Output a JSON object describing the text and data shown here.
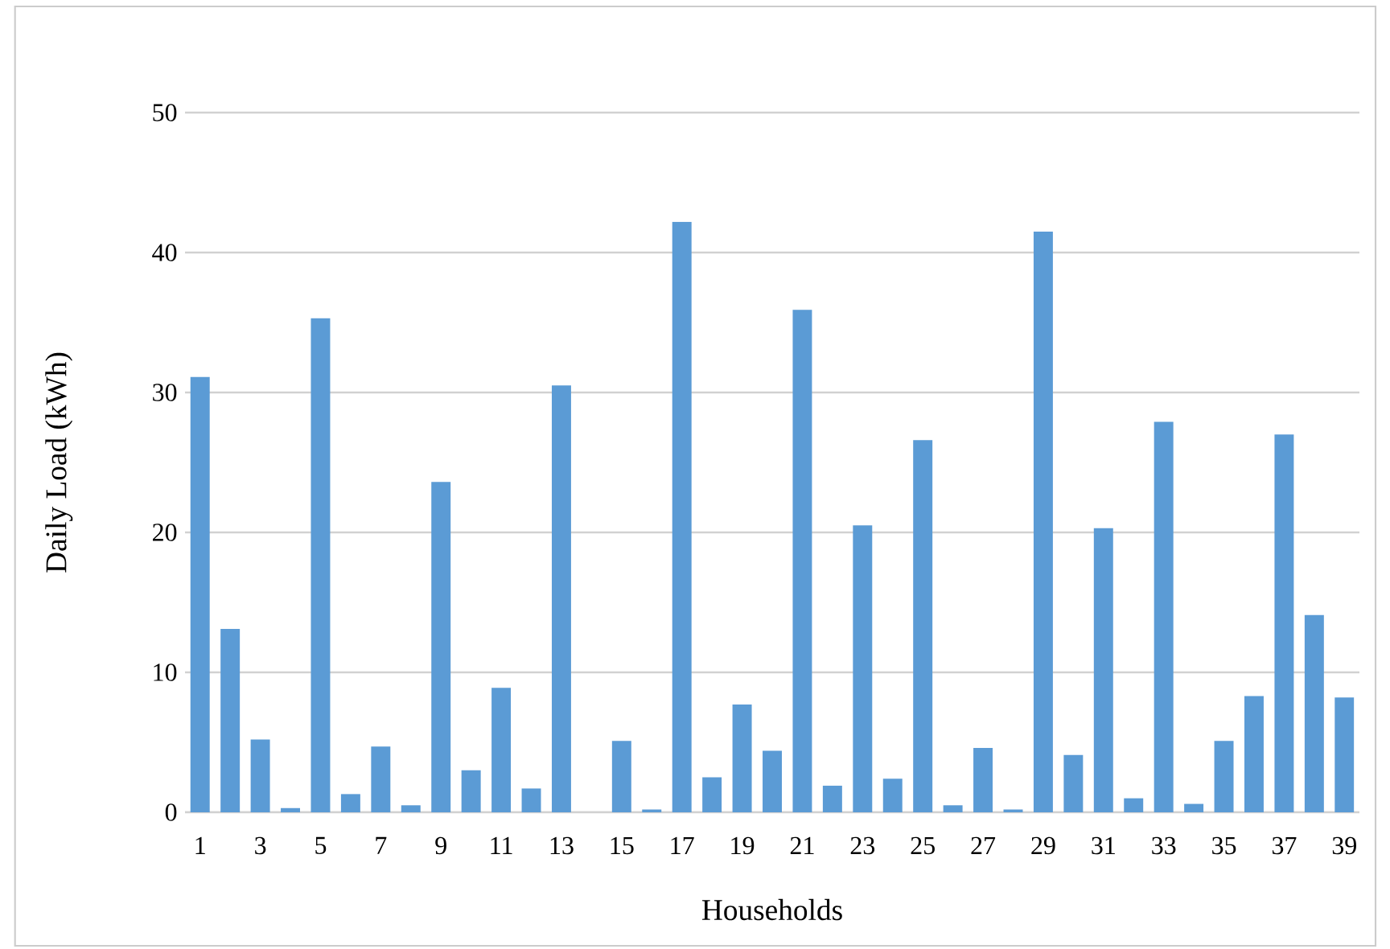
{
  "chart_data": {
    "type": "bar",
    "xlabel": "Households",
    "ylabel": "Daily Load (kWh)",
    "categories": [
      "1",
      null,
      "3",
      null,
      "5",
      null,
      "7",
      null,
      "9",
      null,
      "11",
      null,
      "13",
      null,
      "15",
      null,
      "17",
      null,
      "19",
      null,
      "21",
      null,
      "23",
      null,
      "25",
      null,
      "27",
      null,
      "29",
      null,
      "31",
      null,
      "33",
      null,
      "35",
      null,
      "37",
      null,
      "39"
    ],
    "values": [
      31.1,
      13.1,
      5.2,
      0.3,
      35.3,
      1.3,
      4.7,
      0.5,
      23.6,
      3.0,
      8.9,
      1.7,
      30.5,
      0.0,
      5.1,
      0.2,
      42.2,
      2.5,
      7.7,
      4.4,
      35.9,
      1.9,
      20.5,
      2.4,
      26.6,
      0.5,
      4.6,
      0.2,
      41.5,
      4.1,
      20.3,
      1.0,
      27.9,
      0.6,
      5.1,
      8.3,
      27.0,
      14.1,
      8.2
    ],
    "color": "#5b9bd5",
    "ylim": [
      0,
      50
    ],
    "yticks": [
      0,
      10,
      20,
      30,
      40,
      50
    ],
    "grid": "y"
  }
}
